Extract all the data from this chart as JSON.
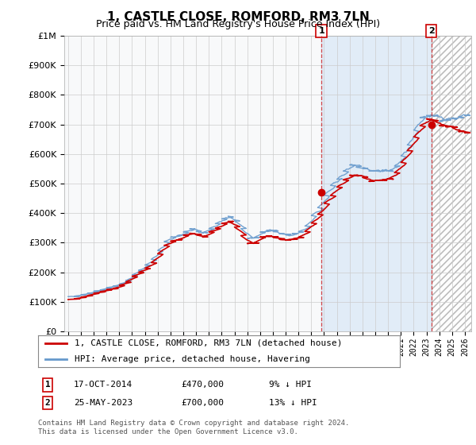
{
  "title": "1, CASTLE CLOSE, ROMFORD, RM3 7LN",
  "subtitle": "Price paid vs. HM Land Registry's House Price Index (HPI)",
  "legend_line1": "1, CASTLE CLOSE, ROMFORD, RM3 7LN (detached house)",
  "legend_line2": "HPI: Average price, detached house, Havering",
  "transaction1_date": "17-OCT-2014",
  "transaction1_price": "£470,000",
  "transaction1_hpi": "9% ↓ HPI",
  "transaction1_x": 2014.79,
  "transaction1_y": 470000,
  "transaction2_date": "25-MAY-2023",
  "transaction2_price": "£700,000",
  "transaction2_hpi": "13% ↓ HPI",
  "transaction2_x": 2023.38,
  "transaction2_y": 700000,
  "copyright_text": "Contains HM Land Registry data © Crown copyright and database right 2024.\nThis data is licensed under the Open Government Licence v3.0.",
  "red_color": "#cc0000",
  "blue_color": "#6699cc",
  "blue_fill_color": "#cce0f5",
  "marker_box_color": "#cc0000",
  "background_color": "#ffffff",
  "grid_color": "#cccccc",
  "ylim": [
    0,
    1000000
  ],
  "xlim_start": 1994.7,
  "xlim_end": 2026.5,
  "chart_bg": "#f0f4f8"
}
